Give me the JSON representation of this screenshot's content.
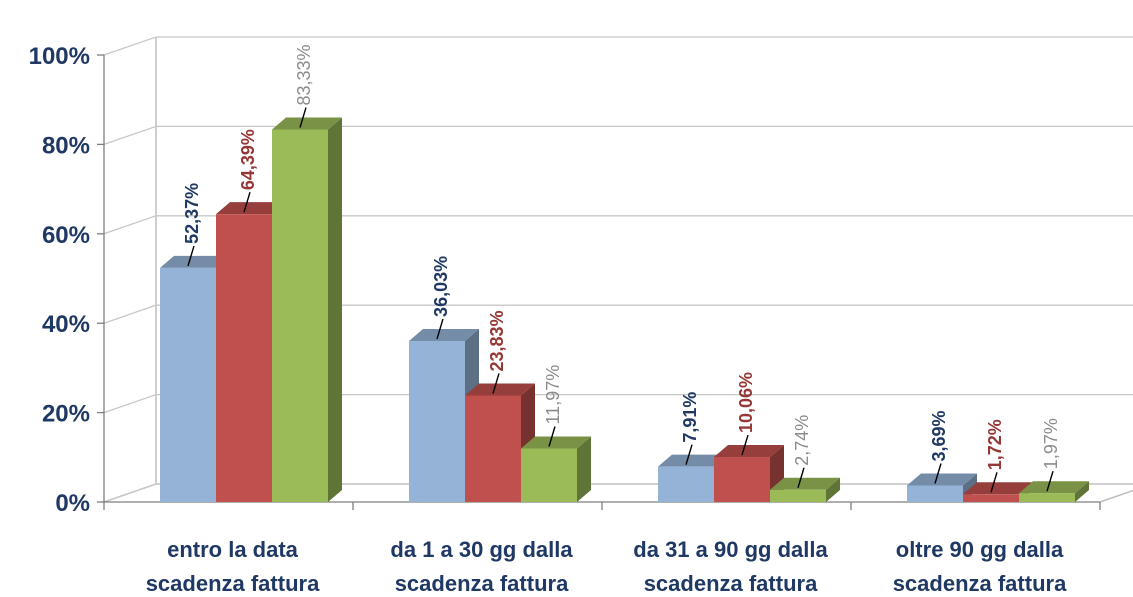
{
  "chart_data": {
    "type": "bar",
    "title": "",
    "xlabel": "",
    "ylabel": "",
    "ylim": [
      0,
      100
    ],
    "yticks": [
      "0%",
      "20%",
      "40%",
      "60%",
      "80%",
      "100%"
    ],
    "categories": [
      [
        "entro la data",
        "scadenza fattura"
      ],
      [
        "da 1 a 30 gg dalla",
        "scadenza fattura"
      ],
      [
        "da 31 a 90 gg dalla",
        "scadenza fattura"
      ],
      [
        "oltre 90 gg dalla",
        "scadenza fattura"
      ]
    ],
    "series": [
      {
        "values": [
          52.37,
          36.03,
          7.91,
          3.69
        ],
        "labels": [
          "52,37%",
          "36,03%",
          "7,91%",
          "3,69%"
        ],
        "color": "#95b3d7",
        "label_color": "#1f3864"
      },
      {
        "values": [
          64.39,
          23.83,
          10.06,
          1.72
        ],
        "labels": [
          "64,39%",
          "23,83%",
          "10,06%",
          "1,72%"
        ],
        "color": "#c0504d",
        "label_color": "#953735"
      },
      {
        "values": [
          83.33,
          11.97,
          2.74,
          1.97
        ],
        "labels": [
          "83,33%",
          "11,97%",
          "2,74%",
          "1,97%"
        ],
        "color": "#9bbb59",
        "label_color": "#8c8c8c"
      }
    ],
    "grid": true,
    "legend": "none",
    "style": "3d-column"
  }
}
